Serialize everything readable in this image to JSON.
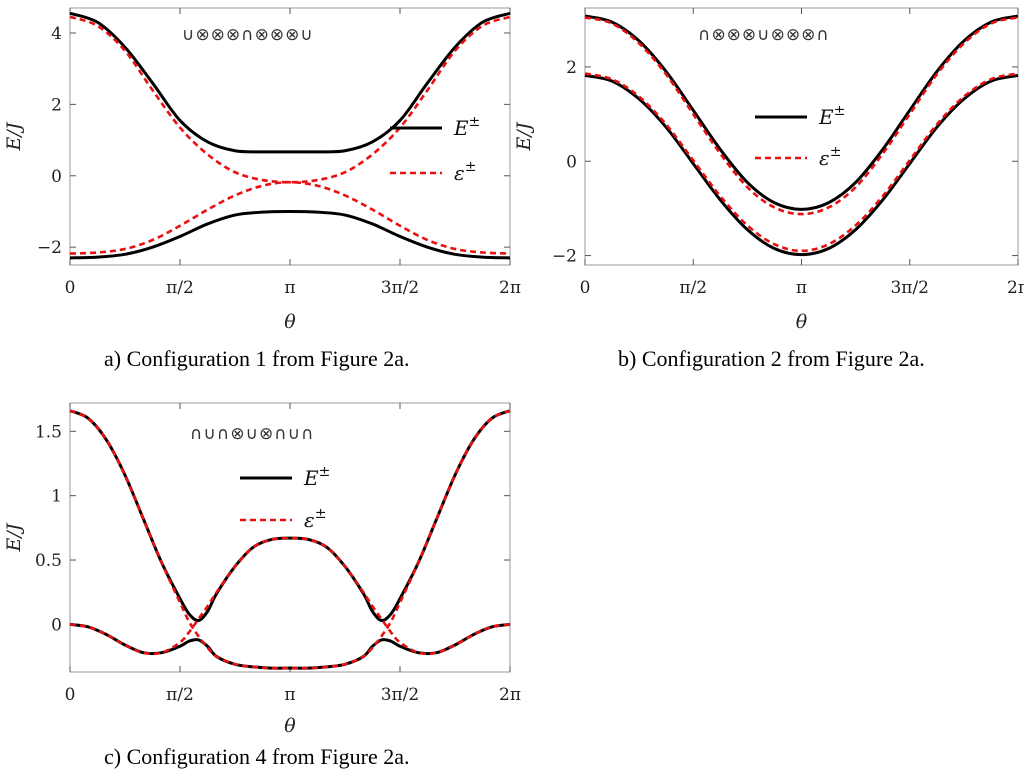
{
  "chart_data": [
    {
      "id": "a",
      "type": "line",
      "caption": "a)    Configuration 1 from Figure 2a.",
      "config_symbols": "∪⊗⊗⊗∩⊗⊗⊗∪",
      "xlabel": "θ",
      "ylabel": "E/J",
      "xlim": [
        0,
        6.2832
      ],
      "ylim": [
        -2.5,
        4.7
      ],
      "xticks": [
        0,
        1.5708,
        3.1416,
        4.7124,
        6.2832
      ],
      "xticklabels": [
        "0",
        "π/2",
        "π",
        "3π/2",
        "2π"
      ],
      "yticks": [
        -2,
        0,
        2,
        4
      ],
      "yticklabels": [
        "−2",
        "0",
        "2",
        "4"
      ],
      "legend": [
        "E",
        "ε"
      ],
      "legend_sup": "±",
      "series": [
        {
          "name": "E+",
          "style": "solid",
          "color": "#000000",
          "x": [
            0,
            0.3927,
            0.7854,
            1.1781,
            1.5708,
            1.9635,
            2.3562,
            2.7489,
            3.1416,
            3.5343,
            3.927,
            4.3197,
            4.7124,
            5.1051,
            5.4978,
            5.8905,
            6.2832
          ],
          "y": [
            4.55,
            4.3,
            3.6,
            2.6,
            1.55,
            0.95,
            0.7,
            0.67,
            0.67,
            0.67,
            0.7,
            0.95,
            1.55,
            2.6,
            3.6,
            4.3,
            4.55
          ]
        },
        {
          "name": "E-",
          "style": "solid",
          "color": "#000000",
          "x": [
            0,
            0.3927,
            0.7854,
            1.1781,
            1.5708,
            1.9635,
            2.3562,
            2.7489,
            3.1416,
            3.5343,
            3.927,
            4.3197,
            4.7124,
            5.1051,
            5.4978,
            5.8905,
            6.2832
          ],
          "y": [
            -2.3,
            -2.28,
            -2.2,
            -2.0,
            -1.7,
            -1.35,
            -1.1,
            -1.02,
            -1.0,
            -1.02,
            -1.1,
            -1.35,
            -1.7,
            -2.0,
            -2.2,
            -2.28,
            -2.3
          ]
        },
        {
          "name": "ε+",
          "style": "dashed",
          "color": "#e81010",
          "x": [
            0,
            0.3927,
            0.7854,
            1.1781,
            1.5708,
            1.9635,
            2.3562,
            2.7489,
            3.1416,
            3.5343,
            3.927,
            4.3197,
            4.7124,
            5.1051,
            5.4978,
            5.8905,
            6.2832
          ],
          "y": [
            4.45,
            4.2,
            3.5,
            2.4,
            1.35,
            0.6,
            0.1,
            -0.12,
            -0.18,
            -0.12,
            0.1,
            0.6,
            1.35,
            2.4,
            3.5,
            4.2,
            4.45
          ]
        },
        {
          "name": "ε-",
          "style": "dashed",
          "color": "#e81010",
          "x": [
            0,
            0.3927,
            0.7854,
            1.1781,
            1.5708,
            1.9635,
            2.3562,
            2.7489,
            3.1416,
            3.5343,
            3.927,
            4.3197,
            4.7124,
            5.1051,
            5.4978,
            5.8905,
            6.2832
          ],
          "y": [
            -2.18,
            -2.15,
            -2.05,
            -1.8,
            -1.4,
            -0.95,
            -0.55,
            -0.28,
            -0.18,
            -0.28,
            -0.55,
            -0.95,
            -1.4,
            -1.8,
            -2.05,
            -2.15,
            -2.18
          ]
        }
      ]
    },
    {
      "id": "b",
      "type": "line",
      "caption": "b) Configuration 2 from Figure 2a.",
      "config_symbols": "∩⊗⊗⊗∪⊗⊗⊗∩",
      "xlabel": "θ",
      "ylabel": "E/J",
      "xlim": [
        0,
        6.2832
      ],
      "ylim": [
        -2.2,
        3.25
      ],
      "xticks": [
        0,
        1.5708,
        3.1416,
        4.7124,
        6.2832
      ],
      "xticklabels": [
        "0",
        "π/2",
        "π",
        "3π/2",
        "2π"
      ],
      "yticks": [
        -2,
        0,
        2
      ],
      "yticklabels": [
        "−2",
        "0",
        "2"
      ],
      "legend": [
        "E",
        "ε"
      ],
      "legend_sup": "±",
      "series": [
        {
          "name": "E+",
          "style": "solid",
          "color": "#000000",
          "x": [
            0,
            0.3927,
            0.7854,
            1.1781,
            1.5708,
            1.9635,
            2.3562,
            2.7489,
            3.1416,
            3.5343,
            3.927,
            4.3197,
            4.7124,
            5.1051,
            5.4978,
            5.8905,
            6.2832
          ],
          "y": [
            3.08,
            2.95,
            2.55,
            1.9,
            1.08,
            0.25,
            -0.45,
            -0.88,
            -1.02,
            -0.88,
            -0.45,
            0.25,
            1.08,
            1.9,
            2.55,
            2.95,
            3.08
          ]
        },
        {
          "name": "E-",
          "style": "solid",
          "color": "#000000",
          "x": [
            0,
            0.3927,
            0.7854,
            1.1781,
            1.5708,
            1.9635,
            2.3562,
            2.7489,
            3.1416,
            3.5343,
            3.927,
            4.3197,
            4.7124,
            5.1051,
            5.4978,
            5.8905,
            6.2832
          ],
          "y": [
            1.82,
            1.7,
            1.32,
            0.72,
            -0.05,
            -0.82,
            -1.45,
            -1.85,
            -1.98,
            -1.85,
            -1.45,
            -0.82,
            -0.05,
            0.72,
            1.32,
            1.7,
            1.82
          ]
        },
        {
          "name": "ε+",
          "style": "dashed",
          "color": "#e81010",
          "x": [
            0,
            0.3927,
            0.7854,
            1.1781,
            1.5708,
            1.9635,
            2.3562,
            2.7489,
            3.1416,
            3.5343,
            3.927,
            4.3197,
            4.7124,
            5.1051,
            5.4978,
            5.8905,
            6.2832
          ],
          "y": [
            3.05,
            2.92,
            2.5,
            1.84,
            1.0,
            0.16,
            -0.55,
            -0.98,
            -1.12,
            -0.98,
            -0.55,
            0.16,
            1.0,
            1.84,
            2.5,
            2.92,
            3.05
          ]
        },
        {
          "name": "ε-",
          "style": "dashed",
          "color": "#e81010",
          "x": [
            0,
            0.3927,
            0.7854,
            1.1781,
            1.5708,
            1.9635,
            2.3562,
            2.7489,
            3.1416,
            3.5343,
            3.927,
            4.3197,
            4.7124,
            5.1051,
            5.4978,
            5.8905,
            6.2832
          ],
          "y": [
            1.86,
            1.74,
            1.37,
            0.78,
            0.02,
            -0.74,
            -1.36,
            -1.76,
            -1.9,
            -1.76,
            -1.36,
            -0.74,
            0.02,
            0.78,
            1.37,
            1.74,
            1.86
          ]
        }
      ]
    },
    {
      "id": "c",
      "type": "line",
      "caption": "c)    Configuration 4 from Figure 2a.",
      "config_symbols": "∩∪∩⊗∪⊗∩∪∩",
      "xlabel": "θ",
      "ylabel": "E/J",
      "xlim": [
        0,
        6.2832
      ],
      "ylim": [
        -0.37,
        1.72
      ],
      "xticks": [
        0,
        1.5708,
        3.1416,
        4.7124,
        6.2832
      ],
      "xticklabels": [
        "0",
        "π/2",
        "π",
        "3π/2",
        "2π"
      ],
      "yticks": [
        0,
        0.5,
        1,
        1.5
      ],
      "yticklabels": [
        "0",
        "0.5",
        "1",
        "1.5"
      ],
      "legend": [
        "E",
        "ε"
      ],
      "legend_sup": "±",
      "series": [
        {
          "name": "E+",
          "style": "solid",
          "color": "#000000",
          "x": [
            0,
            0.2618,
            0.5236,
            0.7854,
            1.0472,
            1.309,
            1.5708,
            1.7017,
            1.8326,
            1.9635,
            2.0944,
            2.3562,
            2.618,
            2.8798,
            3.1416,
            3.4034,
            3.6652,
            3.927,
            4.1888,
            4.3197,
            4.4506,
            4.5815,
            4.7124,
            4.9742,
            5.236,
            5.4978,
            5.7596,
            6.0214,
            6.2832
          ],
          "y": [
            1.66,
            1.6,
            1.43,
            1.16,
            0.82,
            0.48,
            0.2,
            0.08,
            0.03,
            0.1,
            0.24,
            0.45,
            0.6,
            0.66,
            0.67,
            0.66,
            0.6,
            0.45,
            0.24,
            0.1,
            0.03,
            0.08,
            0.2,
            0.48,
            0.82,
            1.16,
            1.43,
            1.6,
            1.66
          ]
        },
        {
          "name": "E-",
          "style": "solid",
          "color": "#000000",
          "x": [
            0,
            0.2618,
            0.5236,
            0.7854,
            1.0472,
            1.309,
            1.5708,
            1.7017,
            1.8326,
            1.9635,
            2.0944,
            2.3562,
            2.618,
            2.8798,
            3.1416,
            3.4034,
            3.6652,
            3.927,
            4.1888,
            4.3197,
            4.4506,
            4.5815,
            4.7124,
            4.9742,
            5.236,
            5.4978,
            5.7596,
            6.0214,
            6.2832
          ],
          "y": [
            0.0,
            -0.02,
            -0.08,
            -0.16,
            -0.22,
            -0.22,
            -0.17,
            -0.13,
            -0.12,
            -0.17,
            -0.25,
            -0.31,
            -0.33,
            -0.34,
            -0.34,
            -0.34,
            -0.33,
            -0.31,
            -0.25,
            -0.17,
            -0.12,
            -0.13,
            -0.17,
            -0.22,
            -0.22,
            -0.16,
            -0.08,
            -0.02,
            0.0
          ]
        },
        {
          "name": "ε+",
          "style": "dashed",
          "color": "#e81010",
          "x": [
            0,
            0.2618,
            0.5236,
            0.7854,
            1.0472,
            1.309,
            1.5708,
            1.7017,
            1.8326,
            1.9635,
            2.0944,
            2.3562,
            2.618,
            2.8798,
            3.1416,
            3.4034,
            3.6652,
            3.927,
            4.1888,
            4.3197,
            4.4506,
            4.5815,
            4.7124,
            4.9742,
            5.236,
            5.4978,
            5.7596,
            6.0214,
            6.2832
          ],
          "y": [
            1.66,
            1.6,
            1.43,
            1.16,
            0.82,
            0.48,
            0.17,
            0.02,
            -0.09,
            -0.18,
            -0.25,
            -0.31,
            -0.33,
            -0.34,
            -0.34,
            -0.34,
            -0.33,
            -0.31,
            -0.25,
            -0.18,
            -0.09,
            0.02,
            0.17,
            0.48,
            0.82,
            1.16,
            1.43,
            1.6,
            1.66
          ]
        },
        {
          "name": "ε-",
          "style": "dashed",
          "color": "#e81010",
          "x": [
            0,
            0.2618,
            0.5236,
            0.7854,
            1.0472,
            1.309,
            1.5708,
            1.7017,
            1.8326,
            1.9635,
            2.0944,
            2.3562,
            2.618,
            2.8798,
            3.1416,
            3.4034,
            3.6652,
            3.927,
            4.1888,
            4.3197,
            4.4506,
            4.5815,
            4.7124,
            4.9742,
            5.236,
            5.4978,
            5.7596,
            6.0214,
            6.2832
          ],
          "y": [
            0.0,
            -0.02,
            -0.08,
            -0.16,
            -0.22,
            -0.22,
            -0.14,
            -0.06,
            0.04,
            0.14,
            0.25,
            0.45,
            0.6,
            0.66,
            0.67,
            0.66,
            0.6,
            0.45,
            0.25,
            0.14,
            0.04,
            -0.06,
            -0.14,
            -0.22,
            -0.22,
            -0.16,
            -0.08,
            -0.02,
            0.0
          ]
        }
      ]
    }
  ]
}
